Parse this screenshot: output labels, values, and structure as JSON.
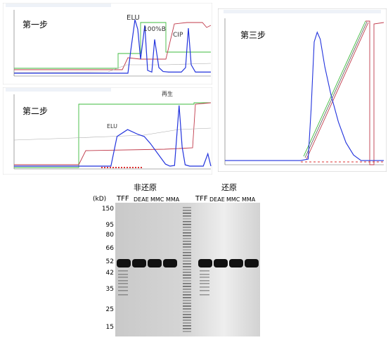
{
  "panels": {
    "step1": {
      "label": "第一步",
      "peaks": [
        "ELU",
        "100%B",
        "CIP"
      ]
    },
    "step2": {
      "label": "第二步",
      "peaks": [
        "ELU",
        "再生"
      ]
    },
    "step3": {
      "label": "第三步"
    }
  },
  "gel": {
    "group_labels": [
      "非还原",
      "还原"
    ],
    "kd_label": "(kD)",
    "lane_labels_left": [
      "TFF",
      "DEAE",
      "MMC",
      "MMA"
    ],
    "lane_labels_right": [
      "TFF",
      "DEAE",
      "MMC",
      "MMA"
    ],
    "marker_kd": [
      150,
      95,
      80,
      66,
      52,
      42,
      35,
      25,
      15
    ]
  },
  "colors": {
    "uv": "#2233dd",
    "gradient": "#3dbb3d",
    "conductivity": "#c0394a",
    "gel_band": "#111111"
  },
  "chart_data": [
    {
      "type": "line",
      "panel": "step1",
      "series": [
        {
          "values_x": [
            0,
            100,
            150,
            162,
            166,
            172,
            176,
            180,
            186,
            190,
            196,
            200,
            206,
            212,
            220,
            230,
            238,
            244,
            248,
            252,
            258,
            264,
            280
          ],
          "values_y": [
            0,
            0,
            0,
            0,
            40,
            95,
            78,
            25,
            85,
            5,
            2,
            60,
            10,
            3,
            2,
            2,
            2,
            10,
            80,
            15,
            2,
            2,
            2
          ]
        }
      ]
    },
    {
      "type": "line",
      "panel": "step2",
      "series": [
        {
          "values_x": [
            0,
            60,
            100,
            128,
            136,
            150,
            164,
            172,
            180,
            200,
            206,
            212,
            218,
            222,
            226,
            232,
            240,
            250,
            256,
            260
          ],
          "values_y": [
            2,
            2,
            2,
            2,
            45,
            55,
            48,
            45,
            35,
            5,
            2,
            3,
            90,
            30,
            4,
            2,
            2,
            2,
            20,
            2
          ]
        }
      ]
    },
    {
      "type": "line",
      "panel": "step3",
      "series": [
        {
          "values_x": [
            0,
            100,
            110,
            114,
            118,
            122,
            126,
            132,
            140,
            150,
            160,
            170,
            180,
            200,
            210
          ],
          "values_y": [
            2,
            2,
            3,
            40,
            88,
            95,
            90,
            70,
            50,
            30,
            15,
            6,
            2,
            2,
            2
          ]
        }
      ]
    }
  ]
}
